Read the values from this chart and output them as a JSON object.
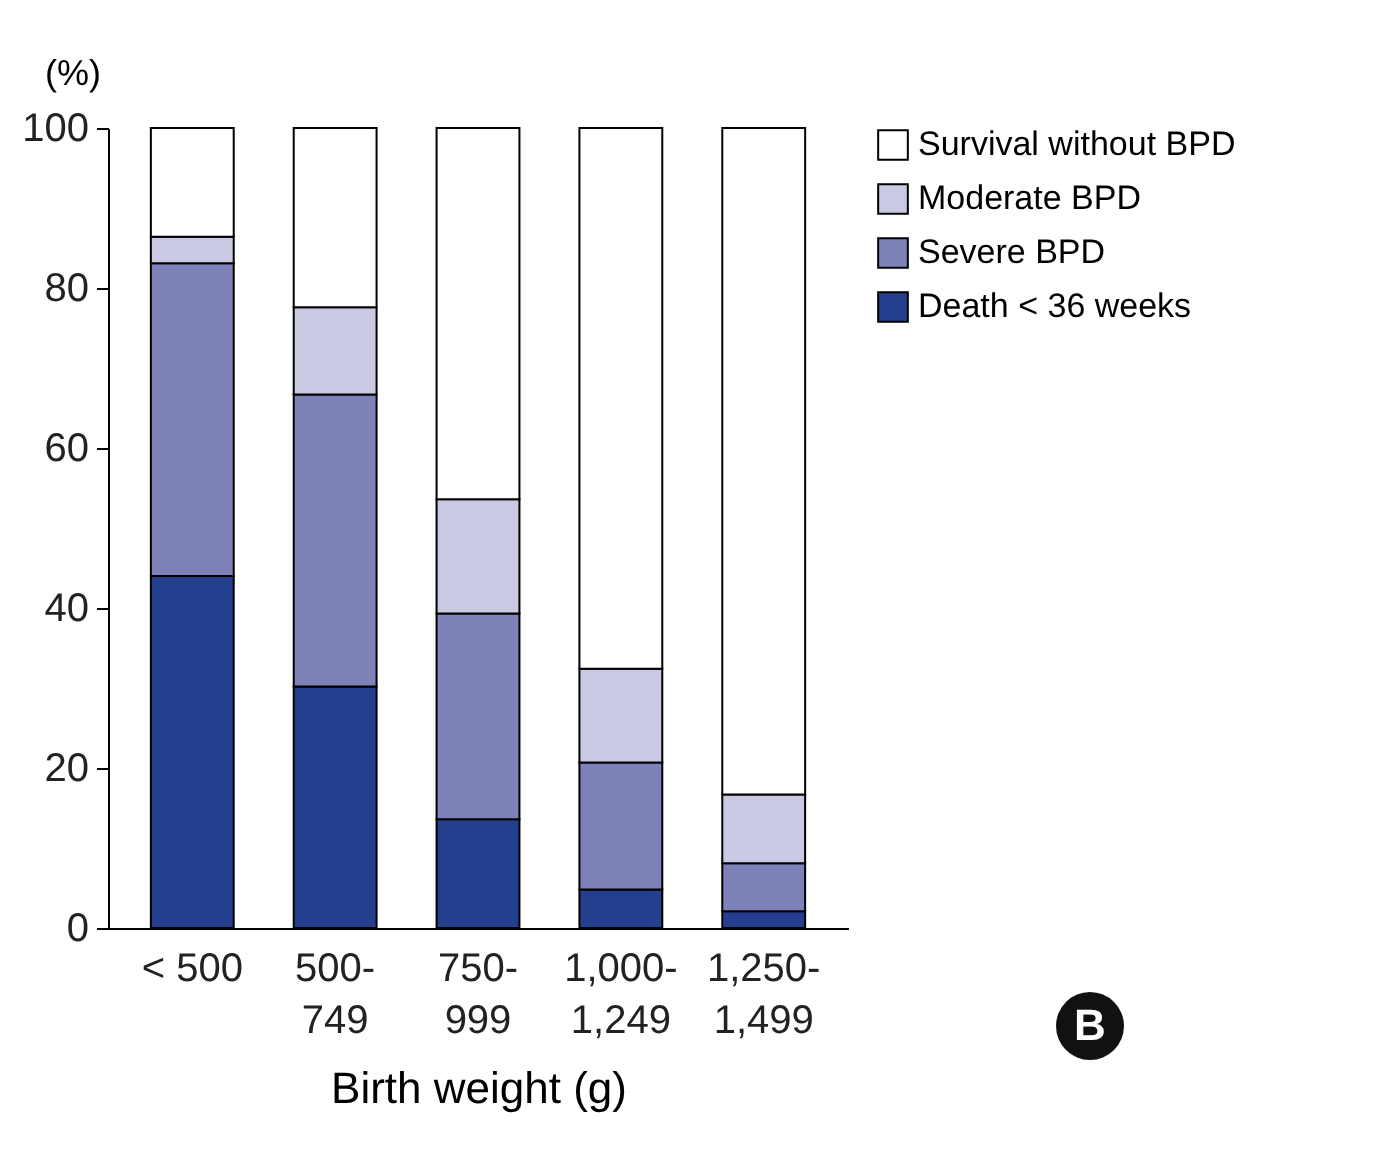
{
  "chart_data": {
    "type": "bar",
    "stacked": true,
    "ylabel": "(%)",
    "xlabel": "Birth weight (g)",
    "categories": [
      "< 500",
      "500-\n749",
      "750-\n999",
      "1,000-\n1,249",
      "1,250-\n1,499"
    ],
    "series": [
      {
        "name": "Death  < 36 weeks",
        "color": "#253f8f",
        "values": [
          44,
          30.2,
          13.6,
          4.8,
          2.1
        ]
      },
      {
        "name": "Severe BPD",
        "color": "#7f82b8",
        "values": [
          39.1,
          36.5,
          25.7,
          15.9,
          6
        ]
      },
      {
        "name": "Moderate BPD",
        "color": "#c9c9e3",
        "values": [
          3.3,
          10.9,
          14.3,
          11.7,
          8.6
        ]
      },
      {
        "name": "Survival without BPD",
        "color": "#ffffff",
        "values": [
          13.6,
          22.4,
          46.4,
          67.6,
          83.3
        ]
      }
    ],
    "ylim": [
      0,
      100
    ],
    "yticks": [
      0,
      20,
      40,
      60,
      80,
      100
    ],
    "legend": "top right",
    "annotations": [
      "B"
    ]
  }
}
